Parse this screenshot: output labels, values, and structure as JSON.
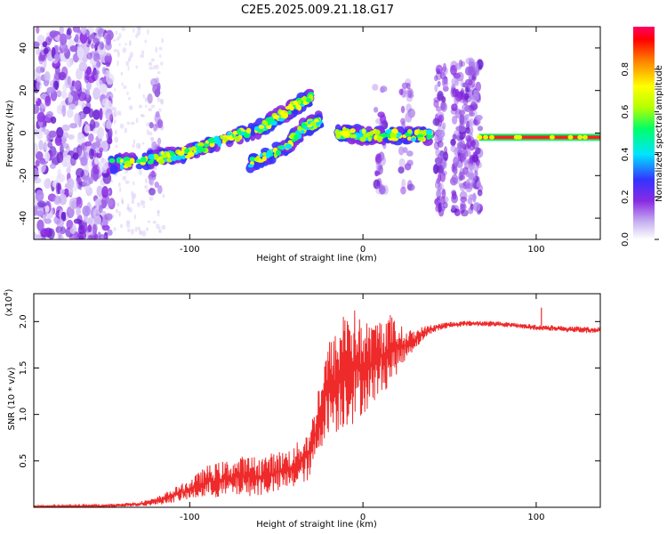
{
  "chart_data": [
    {
      "type": "heatmap",
      "title": "C2E5.2025.009.21.18.G17",
      "xlabel": "Height of straight line (km)",
      "ylabel": "Frequency (Hz)",
      "xlim": [
        -190,
        137
      ],
      "ylim": [
        -50,
        50
      ],
      "xticks": [
        -100,
        0,
        100
      ],
      "yticks": [
        -40,
        -20,
        0,
        20,
        40
      ],
      "colorbar": {
        "label": "Normalized spectral amplitude",
        "range": [
          0,
          1
        ],
        "ticks": [
          "0.0",
          "0.2",
          "0.4",
          "0.6",
          "0.8"
        ],
        "colors": [
          "#ffffff",
          "#c8b4f0",
          "#8a2be2",
          "#3333ff",
          "#00e5ff",
          "#00ff66",
          "#b4ff00",
          "#ffff00",
          "#ff8000",
          "#ff0000",
          "#ff0066"
        ]
      },
      "features": {
        "noise_region_x": [
          -190,
          -145
        ],
        "rising_track": [
          [
            -147,
            -15
          ],
          [
            -120,
            -12
          ],
          [
            -100,
            -9
          ],
          [
            -80,
            -3
          ],
          [
            -60,
            2
          ],
          [
            -48,
            8
          ],
          [
            -40,
            12
          ],
          [
            -30,
            17
          ]
        ],
        "second_track": [
          [
            -65,
            -14
          ],
          [
            -45,
            -7
          ],
          [
            -35,
            2
          ],
          [
            -25,
            6
          ]
        ],
        "flat_track": [
          [
            -15,
            0
          ],
          [
            0,
            -1
          ],
          [
            20,
            -1
          ],
          [
            40,
            -1
          ]
        ],
        "bright_band": [
          [
            67,
            -2
          ],
          [
            137,
            -2
          ]
        ],
        "scatter_columns_x": [
          -120,
          10,
          25,
          45,
          55,
          60,
          65
        ]
      }
    },
    {
      "type": "line",
      "xlabel": "Height of straight line (km)",
      "ylabel": "SNR (10 * v/v)",
      "y_multiplier": "(x10",
      "y_multiplier_exp": "4",
      "xlim": [
        -190,
        137
      ],
      "ylim": [
        0,
        2.3
      ],
      "xticks": [
        -100,
        0,
        100
      ],
      "yticks": [
        "0.5",
        "1.0",
        "1.5",
        "2.0"
      ],
      "color": "#ee2a2a",
      "envelope": {
        "x": [
          -190,
          -150,
          -130,
          -120,
          -110,
          -100,
          -90,
          -80,
          -70,
          -60,
          -50,
          -40,
          -30,
          -25,
          -20,
          -15,
          -10,
          -5,
          0,
          5,
          10,
          15,
          20,
          25,
          30,
          35,
          40,
          50,
          60,
          70,
          80,
          90,
          100,
          110,
          120,
          137
        ],
        "low": [
          0.0,
          0.0,
          0.01,
          0.02,
          0.05,
          0.08,
          0.1,
          0.1,
          0.12,
          0.12,
          0.15,
          0.2,
          0.3,
          0.6,
          0.8,
          0.8,
          0.85,
          0.9,
          1.0,
          1.1,
          1.2,
          1.3,
          1.45,
          1.6,
          1.7,
          1.8,
          1.88,
          1.93,
          1.95,
          1.95,
          1.94,
          1.93,
          1.9,
          1.9,
          1.88,
          1.87
        ],
        "high": [
          0.02,
          0.03,
          0.06,
          0.1,
          0.2,
          0.3,
          0.45,
          0.5,
          0.55,
          0.55,
          0.6,
          0.65,
          0.9,
          1.4,
          1.8,
          1.9,
          2.25,
          2.15,
          2.0,
          2.0,
          2.05,
          2.1,
          2.0,
          1.9,
          1.92,
          1.95,
          1.97,
          2.0,
          2.01,
          2.01,
          2.0,
          1.98,
          1.97,
          1.96,
          1.95,
          1.94
        ]
      },
      "spike": {
        "x": 103,
        "y": 2.15
      }
    }
  ]
}
